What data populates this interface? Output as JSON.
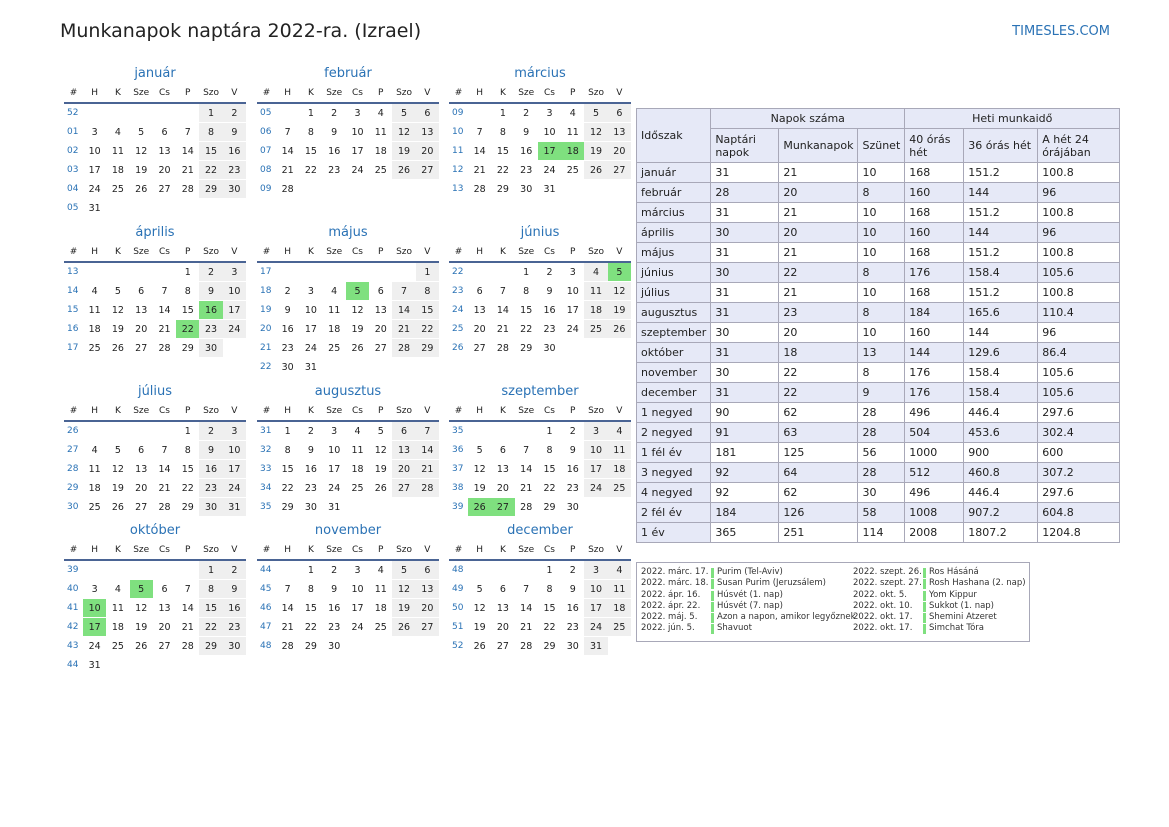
{
  "title": "Munkanapok naptára 2022-ra. (Izrael)",
  "site": "TIMESLES.COM",
  "weekday_headers": [
    "#",
    "H",
    "K",
    "Sze",
    "Cs",
    "P",
    "Szo",
    "V"
  ],
  "months": [
    {
      "name": "január",
      "weeks": [
        {
          "w": "52",
          "d": [
            "",
            "",
            "",
            "",
            "",
            "1",
            "2"
          ]
        },
        {
          "w": "01",
          "d": [
            "3",
            "4",
            "5",
            "6",
            "7",
            "8",
            "9"
          ]
        },
        {
          "w": "02",
          "d": [
            "10",
            "11",
            "12",
            "13",
            "14",
            "15",
            "16"
          ]
        },
        {
          "w": "03",
          "d": [
            "17",
            "18",
            "19",
            "20",
            "21",
            "22",
            "23"
          ]
        },
        {
          "w": "04",
          "d": [
            "24",
            "25",
            "26",
            "27",
            "28",
            "29",
            "30"
          ]
        },
        {
          "w": "05",
          "d": [
            "31",
            "",
            "",
            "",
            "",
            "",
            ""
          ]
        }
      ],
      "holidays": []
    },
    {
      "name": "február",
      "weeks": [
        {
          "w": "05",
          "d": [
            "",
            "1",
            "2",
            "3",
            "4",
            "5",
            "6"
          ]
        },
        {
          "w": "06",
          "d": [
            "7",
            "8",
            "9",
            "10",
            "11",
            "12",
            "13"
          ]
        },
        {
          "w": "07",
          "d": [
            "14",
            "15",
            "16",
            "17",
            "18",
            "19",
            "20"
          ]
        },
        {
          "w": "08",
          "d": [
            "21",
            "22",
            "23",
            "24",
            "25",
            "26",
            "27"
          ]
        },
        {
          "w": "09",
          "d": [
            "28",
            "",
            "",
            "",
            "",
            "",
            ""
          ]
        }
      ],
      "holidays": []
    },
    {
      "name": "március",
      "weeks": [
        {
          "w": "09",
          "d": [
            "",
            "1",
            "2",
            "3",
            "4",
            "5",
            "6"
          ]
        },
        {
          "w": "10",
          "d": [
            "7",
            "8",
            "9",
            "10",
            "11",
            "12",
            "13"
          ]
        },
        {
          "w": "11",
          "d": [
            "14",
            "15",
            "16",
            "17",
            "18",
            "19",
            "20"
          ]
        },
        {
          "w": "12",
          "d": [
            "21",
            "22",
            "23",
            "24",
            "25",
            "26",
            "27"
          ]
        },
        {
          "w": "13",
          "d": [
            "28",
            "29",
            "30",
            "31",
            "",
            "",
            ""
          ]
        }
      ],
      "holidays": [
        "17",
        "18"
      ]
    },
    {
      "name": "április",
      "weeks": [
        {
          "w": "13",
          "d": [
            "",
            "",
            "",
            "",
            "1",
            "2",
            "3"
          ]
        },
        {
          "w": "14",
          "d": [
            "4",
            "5",
            "6",
            "7",
            "8",
            "9",
            "10"
          ]
        },
        {
          "w": "15",
          "d": [
            "11",
            "12",
            "13",
            "14",
            "15",
            "16",
            "17"
          ]
        },
        {
          "w": "16",
          "d": [
            "18",
            "19",
            "20",
            "21",
            "22",
            "23",
            "24"
          ]
        },
        {
          "w": "17",
          "d": [
            "25",
            "26",
            "27",
            "28",
            "29",
            "30",
            ""
          ]
        }
      ],
      "holidays": [
        "16",
        "22"
      ]
    },
    {
      "name": "május",
      "weeks": [
        {
          "w": "17",
          "d": [
            "",
            "",
            "",
            "",
            "",
            "",
            "1"
          ]
        },
        {
          "w": "18",
          "d": [
            "2",
            "3",
            "4",
            "5",
            "6",
            "7",
            "8"
          ]
        },
        {
          "w": "19",
          "d": [
            "9",
            "10",
            "11",
            "12",
            "13",
            "14",
            "15"
          ]
        },
        {
          "w": "20",
          "d": [
            "16",
            "17",
            "18",
            "19",
            "20",
            "21",
            "22"
          ]
        },
        {
          "w": "21",
          "d": [
            "23",
            "24",
            "25",
            "26",
            "27",
            "28",
            "29"
          ]
        },
        {
          "w": "22",
          "d": [
            "30",
            "31",
            "",
            "",
            "",
            "",
            ""
          ]
        }
      ],
      "holidays": [
        "5"
      ]
    },
    {
      "name": "június",
      "weeks": [
        {
          "w": "22",
          "d": [
            "",
            "",
            "1",
            "2",
            "3",
            "4",
            "5"
          ]
        },
        {
          "w": "23",
          "d": [
            "6",
            "7",
            "8",
            "9",
            "10",
            "11",
            "12"
          ]
        },
        {
          "w": "24",
          "d": [
            "13",
            "14",
            "15",
            "16",
            "17",
            "18",
            "19"
          ]
        },
        {
          "w": "25",
          "d": [
            "20",
            "21",
            "22",
            "23",
            "24",
            "25",
            "26"
          ]
        },
        {
          "w": "26",
          "d": [
            "27",
            "28",
            "29",
            "30",
            "",
            "",
            ""
          ]
        }
      ],
      "holidays": [
        "5"
      ]
    },
    {
      "name": "július",
      "weeks": [
        {
          "w": "26",
          "d": [
            "",
            "",
            "",
            "",
            "1",
            "2",
            "3"
          ]
        },
        {
          "w": "27",
          "d": [
            "4",
            "5",
            "6",
            "7",
            "8",
            "9",
            "10"
          ]
        },
        {
          "w": "28",
          "d": [
            "11",
            "12",
            "13",
            "14",
            "15",
            "16",
            "17"
          ]
        },
        {
          "w": "29",
          "d": [
            "18",
            "19",
            "20",
            "21",
            "22",
            "23",
            "24"
          ]
        },
        {
          "w": "30",
          "d": [
            "25",
            "26",
            "27",
            "28",
            "29",
            "30",
            "31"
          ]
        }
      ],
      "holidays": []
    },
    {
      "name": "augusztus",
      "weeks": [
        {
          "w": "31",
          "d": [
            "1",
            "2",
            "3",
            "4",
            "5",
            "6",
            "7"
          ]
        },
        {
          "w": "32",
          "d": [
            "8",
            "9",
            "10",
            "11",
            "12",
            "13",
            "14"
          ]
        },
        {
          "w": "33",
          "d": [
            "15",
            "16",
            "17",
            "18",
            "19",
            "20",
            "21"
          ]
        },
        {
          "w": "34",
          "d": [
            "22",
            "23",
            "24",
            "25",
            "26",
            "27",
            "28"
          ]
        },
        {
          "w": "35",
          "d": [
            "29",
            "30",
            "31",
            "",
            "",
            "",
            ""
          ]
        }
      ],
      "holidays": []
    },
    {
      "name": "szeptember",
      "weeks": [
        {
          "w": "35",
          "d": [
            "",
            "",
            "",
            "1",
            "2",
            "3",
            "4"
          ]
        },
        {
          "w": "36",
          "d": [
            "5",
            "6",
            "7",
            "8",
            "9",
            "10",
            "11"
          ]
        },
        {
          "w": "37",
          "d": [
            "12",
            "13",
            "14",
            "15",
            "16",
            "17",
            "18"
          ]
        },
        {
          "w": "38",
          "d": [
            "19",
            "20",
            "21",
            "22",
            "23",
            "24",
            "25"
          ]
        },
        {
          "w": "39",
          "d": [
            "26",
            "27",
            "28",
            "29",
            "30",
            "",
            ""
          ]
        }
      ],
      "holidays": [
        "26",
        "27"
      ]
    },
    {
      "name": "október",
      "weeks": [
        {
          "w": "39",
          "d": [
            "",
            "",
            "",
            "",
            "",
            "1",
            "2"
          ]
        },
        {
          "w": "40",
          "d": [
            "3",
            "4",
            "5",
            "6",
            "7",
            "8",
            "9"
          ]
        },
        {
          "w": "41",
          "d": [
            "10",
            "11",
            "12",
            "13",
            "14",
            "15",
            "16"
          ]
        },
        {
          "w": "42",
          "d": [
            "17",
            "18",
            "19",
            "20",
            "21",
            "22",
            "23"
          ]
        },
        {
          "w": "43",
          "d": [
            "24",
            "25",
            "26",
            "27",
            "28",
            "29",
            "30"
          ]
        },
        {
          "w": "44",
          "d": [
            "31",
            "",
            "",
            "",
            "",
            "",
            ""
          ]
        }
      ],
      "holidays": [
        "5",
        "10",
        "17"
      ]
    },
    {
      "name": "november",
      "weeks": [
        {
          "w": "44",
          "d": [
            "",
            "1",
            "2",
            "3",
            "4",
            "5",
            "6"
          ]
        },
        {
          "w": "45",
          "d": [
            "7",
            "8",
            "9",
            "10",
            "11",
            "12",
            "13"
          ]
        },
        {
          "w": "46",
          "d": [
            "14",
            "15",
            "16",
            "17",
            "18",
            "19",
            "20"
          ]
        },
        {
          "w": "47",
          "d": [
            "21",
            "22",
            "23",
            "24",
            "25",
            "26",
            "27"
          ]
        },
        {
          "w": "48",
          "d": [
            "28",
            "29",
            "30",
            "",
            "",
            "",
            ""
          ]
        }
      ],
      "holidays": []
    },
    {
      "name": "december",
      "weeks": [
        {
          "w": "48",
          "d": [
            "",
            "",
            "",
            "1",
            "2",
            "3",
            "4"
          ]
        },
        {
          "w": "49",
          "d": [
            "5",
            "6",
            "7",
            "8",
            "9",
            "10",
            "11"
          ]
        },
        {
          "w": "50",
          "d": [
            "12",
            "13",
            "14",
            "15",
            "16",
            "17",
            "18"
          ]
        },
        {
          "w": "51",
          "d": [
            "19",
            "20",
            "21",
            "22",
            "23",
            "24",
            "25"
          ]
        },
        {
          "w": "52",
          "d": [
            "26",
            "27",
            "28",
            "29",
            "30",
            "31",
            ""
          ]
        }
      ],
      "holidays": []
    }
  ],
  "stats": {
    "header": {
      "period": "Időszak",
      "group_days": "Napok száma",
      "group_hours": "Heti munkaidő",
      "calendar_days": "Naptári napok",
      "working_days": "Munkanapok",
      "rest_days": "Szünet",
      "h40": "40 órás hét",
      "h36": "36 órás hét",
      "h24": "A hét 24 órájában"
    },
    "rows": [
      [
        "január",
        "31",
        "21",
        "10",
        "168",
        "151.2",
        "100.8"
      ],
      [
        "február",
        "28",
        "20",
        "8",
        "160",
        "144",
        "96"
      ],
      [
        "március",
        "31",
        "21",
        "10",
        "168",
        "151.2",
        "100.8"
      ],
      [
        "április",
        "30",
        "20",
        "10",
        "160",
        "144",
        "96"
      ],
      [
        "május",
        "31",
        "21",
        "10",
        "168",
        "151.2",
        "100.8"
      ],
      [
        "június",
        "30",
        "22",
        "8",
        "176",
        "158.4",
        "105.6"
      ],
      [
        "július",
        "31",
        "21",
        "10",
        "168",
        "151.2",
        "100.8"
      ],
      [
        "augusztus",
        "31",
        "23",
        "8",
        "184",
        "165.6",
        "110.4"
      ],
      [
        "szeptember",
        "30",
        "20",
        "10",
        "160",
        "144",
        "96"
      ],
      [
        "október",
        "31",
        "18",
        "13",
        "144",
        "129.6",
        "86.4"
      ],
      [
        "november",
        "30",
        "22",
        "8",
        "176",
        "158.4",
        "105.6"
      ],
      [
        "december",
        "31",
        "22",
        "9",
        "176",
        "158.4",
        "105.6"
      ],
      [
        "1 negyed",
        "90",
        "62",
        "28",
        "496",
        "446.4",
        "297.6"
      ],
      [
        "2 negyed",
        "91",
        "63",
        "28",
        "504",
        "453.6",
        "302.4"
      ],
      [
        "1 fél év",
        "181",
        "125",
        "56",
        "1000",
        "900",
        "600"
      ],
      [
        "3 negyed",
        "92",
        "64",
        "28",
        "512",
        "460.8",
        "307.2"
      ],
      [
        "4 negyed",
        "92",
        "62",
        "30",
        "496",
        "446.4",
        "297.6"
      ],
      [
        "2 fél év",
        "184",
        "126",
        "58",
        "1008",
        "907.2",
        "604.8"
      ],
      [
        "1 év",
        "365",
        "251",
        "114",
        "2008",
        "1807.2",
        "1204.8"
      ]
    ]
  },
  "holidays_list": {
    "left": [
      {
        "date": "2022. márc. 17.",
        "name": "Purim (Tel-Aviv)"
      },
      {
        "date": "2022. márc. 18.",
        "name": "Susan Purim (Jeruzsálem)"
      },
      {
        "date": "2022. ápr. 16.",
        "name": "Húsvét (1. nap)"
      },
      {
        "date": "2022. ápr. 22.",
        "name": "Húsvét (7. nap)"
      },
      {
        "date": "2022. máj. 5.",
        "name": "Azon a napon, amikor legyőznek"
      },
      {
        "date": "2022. jún. 5.",
        "name": "Shavuot"
      }
    ],
    "right": [
      {
        "date": "2022. szept. 26.",
        "name": "Ros Hásáná"
      },
      {
        "date": "2022. szept. 27.",
        "name": "Rosh Hashana (2. nap)"
      },
      {
        "date": "2022. okt. 5.",
        "name": "Yom Kippur"
      },
      {
        "date": "2022. okt. 10.",
        "name": "Sukkot (1. nap)"
      },
      {
        "date": "2022. okt. 17.",
        "name": "Shemini Atzeret"
      },
      {
        "date": "2022. okt. 17.",
        "name": "Simchat Tóra"
      }
    ]
  }
}
